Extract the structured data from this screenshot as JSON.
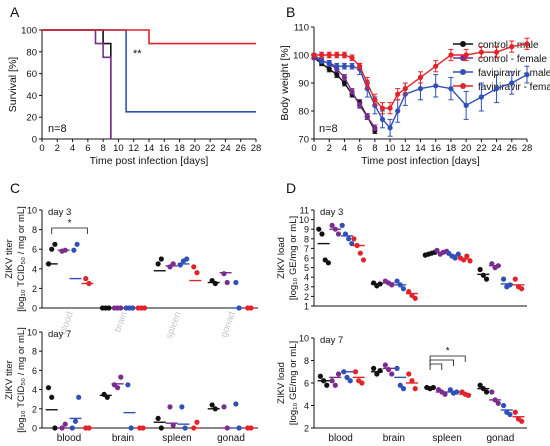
{
  "panels": [
    {
      "letter": "A",
      "n_label": "n=8",
      "significance": "**"
    },
    {
      "letter": "B",
      "n_label": "n=8"
    },
    {
      "letter": "C"
    },
    {
      "letter": "D"
    }
  ],
  "legend": [
    {
      "name": "control - male",
      "color": "#111111"
    },
    {
      "name": "control - female",
      "color": "#7b2d8e"
    },
    {
      "name": "favipiravir - male",
      "color": "#3050b8"
    },
    {
      "name": "favipiravir - female",
      "color": "#e0242a"
    }
  ],
  "chart_data": [
    {
      "id": "A",
      "type": "line",
      "step": true,
      "xlabel": "Time post infection [days]",
      "ylabel": "Survival [%]",
      "xlim": [
        0,
        28
      ],
      "ylim": [
        0,
        100
      ],
      "xticks": [
        0,
        2,
        4,
        6,
        8,
        10,
        12,
        14,
        16,
        18,
        20,
        22,
        24,
        26,
        28
      ],
      "yticks": [
        0,
        20,
        40,
        60,
        80,
        100
      ],
      "series": [
        {
          "name": "control - male",
          "color": "#111111",
          "x": [
            0,
            8,
            8,
            9,
            9
          ],
          "y": [
            100,
            100,
            87.5,
            87.5,
            0
          ]
        },
        {
          "name": "control - female",
          "color": "#7b2d8e",
          "x": [
            0,
            7,
            7,
            8,
            8,
            9,
            9
          ],
          "y": [
            100,
            100,
            87.5,
            87.5,
            75,
            75,
            0
          ]
        },
        {
          "name": "favipiravir - male",
          "color": "#3050b8",
          "x": [
            0,
            11,
            11,
            28
          ],
          "y": [
            100,
            100,
            25,
            25
          ]
        },
        {
          "name": "favipiravir - female",
          "color": "#e0242a",
          "x": [
            0,
            14,
            14,
            28
          ],
          "y": [
            100,
            100,
            87.5,
            87.5
          ]
        }
      ]
    },
    {
      "id": "B",
      "type": "line",
      "xlabel": "Time post infection [days]",
      "ylabel": "Body weight [%]",
      "xlim": [
        0,
        28
      ],
      "ylim": [
        70,
        110
      ],
      "xticks": [
        0,
        2,
        4,
        6,
        8,
        10,
        12,
        14,
        16,
        18,
        20,
        22,
        24,
        26,
        28
      ],
      "yticks": [
        70,
        80,
        90,
        100,
        110
      ],
      "series": [
        {
          "name": "control - male",
          "color": "#111111",
          "x": [
            0,
            1,
            2,
            3,
            4,
            5,
            6,
            7,
            8
          ],
          "y": [
            99,
            97,
            95,
            93,
            90,
            86,
            83,
            78,
            73
          ],
          "err": [
            0.5,
            0.8,
            1,
            1,
            1,
            1,
            1,
            1,
            1
          ]
        },
        {
          "name": "control - female",
          "color": "#7b2d8e",
          "x": [
            0,
            1,
            2,
            3,
            4,
            5,
            6,
            7,
            8
          ],
          "y": [
            99,
            98,
            97,
            95,
            92,
            87,
            82,
            78,
            74
          ],
          "err": [
            0.5,
            0.8,
            1,
            1,
            1,
            1,
            1,
            1,
            1
          ]
        },
        {
          "name": "favipiravir - male",
          "color": "#3050b8",
          "x": [
            0,
            1,
            2,
            3,
            4,
            5,
            6,
            7,
            8,
            9,
            10,
            11,
            12,
            14,
            16,
            18,
            20,
            22,
            24,
            26,
            28
          ],
          "y": [
            100,
            98,
            97,
            96,
            96,
            96,
            95,
            88,
            82,
            77,
            74,
            80,
            86,
            88,
            89,
            88,
            82,
            85,
            88,
            90,
            93
          ],
          "err": [
            0.5,
            1,
            1,
            1,
            1,
            1,
            2,
            3,
            3,
            3,
            3,
            4,
            4,
            4,
            4,
            4,
            5,
            5,
            5,
            4,
            3
          ]
        },
        {
          "name": "favipiravir - female",
          "color": "#e0242a",
          "x": [
            0,
            1,
            2,
            3,
            4,
            5,
            6,
            7,
            8,
            9,
            10,
            11,
            12,
            14,
            16,
            18,
            20,
            22,
            24,
            26,
            28
          ],
          "y": [
            100,
            100,
            100,
            100,
            100,
            99,
            96,
            90,
            84,
            81,
            81,
            86,
            88,
            92,
            96,
            100,
            100,
            101,
            101,
            103,
            104
          ],
          "err": [
            0.5,
            1,
            1,
            1,
            1,
            1,
            1,
            2,
            2,
            2,
            2,
            2,
            2,
            2,
            2,
            2,
            2,
            2,
            2,
            2,
            2
          ]
        }
      ]
    },
    {
      "id": "C3",
      "type": "scatter",
      "day_label": "day 3",
      "ylabel_line1": "ZIKV titer",
      "ylabel_line2": "[log₁₀ TCID₅₀ / mg or mL]",
      "ylim": [
        0,
        10
      ],
      "yticks": [
        0,
        2,
        4,
        6,
        8,
        10
      ],
      "categories": [
        "blood",
        "brain",
        "spleen",
        "gonad"
      ],
      "category_label_color": "#c8c8c8",
      "significance": [
        {
          "label": "*",
          "from": [
            0,
            0
          ],
          "to": [
            0,
            3
          ]
        }
      ],
      "groups": [
        [
          {
            "pts": [
              4.5,
              6,
              6.5
            ],
            "mean": 4.5
          },
          {
            "pts": [
              5.8,
              5.9
            ],
            "mean": 5.9
          },
          {
            "pts": [
              5.9,
              6.5
            ],
            "mean": 3
          },
          {
            "pts": [
              3,
              2.5
            ],
            "mean": 2.5
          }
        ],
        [
          {
            "pts": [
              0,
              0,
              0
            ],
            "mean": 0
          },
          {
            "pts": [
              0,
              0,
              0
            ],
            "mean": 0
          },
          {
            "pts": [
              0,
              0,
              0
            ],
            "mean": 0
          },
          {
            "pts": [
              0,
              0,
              0
            ],
            "mean": 0
          }
        ],
        [
          {
            "pts": [
              4.5,
              5
            ],
            "mean": 3.8
          },
          {
            "pts": [
              4.2,
              4.5
            ],
            "mean": 4.3
          },
          {
            "pts": [
              4.4,
              4.8,
              5
            ],
            "mean": 4.5
          },
          {
            "pts": [
              4.2,
              3.6
            ],
            "mean": 2.8
          }
        ],
        [
          {
            "pts": [
              2.8,
              2.5
            ],
            "mean": 2.6
          },
          {
            "pts": [
              3.5,
              2.6
            ],
            "mean": 3.6
          },
          {
            "pts": [
              2.6,
              0
            ],
            "mean": 0
          },
          {
            "pts": [
              0,
              0
            ],
            "mean": 0
          }
        ]
      ]
    },
    {
      "id": "C7",
      "type": "scatter",
      "day_label": "day 7",
      "ylabel_line1": "ZIKV titer",
      "ylabel_line2": "[log₁₀ TCID₅₀ / mg or mL]",
      "ylim": [
        0,
        10
      ],
      "yticks": [
        0,
        2,
        4,
        6,
        8,
        10
      ],
      "categories": [
        "blood",
        "brain",
        "spleen",
        "gonad"
      ],
      "groups": [
        [
          {
            "pts": [
              4.2,
              3.2,
              0
            ],
            "mean": 1.9
          },
          {
            "pts": [
              0,
              0.4
            ],
            "mean": 0
          },
          {
            "pts": [
              0,
              0.7,
              3.2
            ],
            "mean": 1
          },
          {
            "pts": [
              0,
              0
            ],
            "mean": 0
          }
        ],
        [
          {
            "pts": [
              3.5,
              3.2
            ],
            "mean": 3.4
          },
          {
            "pts": [
              4.5,
              4.2,
              5.3
            ],
            "mean": 4.6
          },
          {
            "pts": [
              4.5,
              0
            ],
            "mean": 1.6
          },
          {
            "pts": [
              0,
              0
            ],
            "mean": 0
          }
        ],
        [
          {
            "pts": [
              1,
              0
            ],
            "mean": 0.6
          },
          {
            "pts": [
              2.2,
              0.3
            ],
            "mean": 0.5
          },
          {
            "pts": [
              2.2,
              0
            ],
            "mean": 0.4
          },
          {
            "pts": [
              0,
              0.6
            ],
            "mean": 0
          }
        ],
        [
          {
            "pts": [
              2.4,
              2
            ],
            "mean": 2
          },
          {
            "pts": [
              2.2,
              0
            ],
            "mean": 0
          },
          {
            "pts": [
              2.5,
              0
            ],
            "mean": 0
          },
          {
            "pts": [
              0,
              0
            ],
            "mean": 0
          }
        ]
      ]
    },
    {
      "id": "D3",
      "type": "scatter",
      "day_label": "day 3",
      "ylabel_line1": "ZIKV load",
      "ylabel_line2": "[log₁₀ GE/mg or mL]",
      "ylim": [
        1,
        11
      ],
      "yticks": [
        1,
        2,
        3,
        4,
        5,
        6,
        7,
        8,
        9,
        10,
        11
      ],
      "categories": [
        "blood",
        "brain",
        "spleen",
        "gonad"
      ],
      "groups": [
        [
          {
            "pts": [
              9,
              8.5,
              5.8,
              5.5
            ],
            "mean": 7.5
          },
          {
            "pts": [
              9.4,
              9,
              8.5
            ],
            "mean": 9
          },
          {
            "pts": [
              9.4,
              8.5,
              8,
              7.5
            ],
            "mean": 8.3
          },
          {
            "pts": [
              8,
              7.3,
              6.5,
              5.8
            ],
            "mean": 7.3
          }
        ],
        [
          {
            "pts": [
              3.4,
              3.1,
              3.3
            ],
            "mean": 3.3
          },
          {
            "pts": [
              3.6,
              3.4,
              3.2
            ],
            "mean": 3.4
          },
          {
            "pts": [
              3.6,
              3.2,
              2.8
            ],
            "mean": 3.2
          },
          {
            "pts": [
              2.5,
              2.1,
              1.8
            ],
            "mean": 2.3
          }
        ],
        [
          {
            "pts": [
              6.3,
              6.4,
              6.5,
              6.6
            ],
            "mean": 6.5
          },
          {
            "pts": [
              6.8,
              6.4,
              6.6,
              6.7
            ],
            "mean": 6.6
          },
          {
            "pts": [
              6.5,
              6.2,
              6.0,
              6.4
            ],
            "mean": 6.3
          },
          {
            "pts": [
              6.0,
              5.8,
              6.2,
              5.7
            ],
            "mean": 5.9
          }
        ],
        [
          {
            "pts": [
              4.8,
              4.2,
              3.8
            ],
            "mean": 4.3
          },
          {
            "pts": [
              5.4,
              5.0,
              5.2
            ],
            "mean": 5.2
          },
          {
            "pts": [
              3.8,
              3.0,
              3.2
            ],
            "mean": 3.3
          },
          {
            "pts": [
              3.8,
              3.0,
              2.8
            ],
            "mean": 3.2
          }
        ]
      ]
    },
    {
      "id": "D7",
      "type": "scatter",
      "day_label": "day 7",
      "ylabel_line1": "ZIKV load",
      "ylabel_line2": "[log₁₀ GE/mg or mL]",
      "ylim": [
        2,
        10
      ],
      "yticks": [
        2,
        4,
        6,
        8,
        10
      ],
      "categories": [
        "blood",
        "brain",
        "spleen",
        "gonad"
      ],
      "significance": [
        {
          "label": "*",
          "from": [
            2,
            0
          ],
          "to": [
            2,
            3
          ]
        },
        {
          "label": "",
          "from": [
            2,
            0
          ],
          "to": [
            2,
            2
          ]
        },
        {
          "label": "",
          "from": [
            2,
            0
          ],
          "to": [
            2,
            1
          ]
        }
      ],
      "groups": [
        [
          {
            "pts": [
              6.6,
              6.2,
              5.8
            ],
            "mean": 6.2
          },
          {
            "pts": [
              6.2,
              5.8,
              6.8
            ],
            "mean": 6.5
          },
          {
            "pts": [
              7.0,
              6.5,
              6.2
            ],
            "mean": 7.0
          },
          {
            "pts": [
              7.0,
              6.2,
              6.0
            ],
            "mean": 6.5
          }
        ],
        [
          {
            "pts": [
              7.3,
              6.8,
              7.1
            ],
            "mean": 7.0
          },
          {
            "pts": [
              7.6,
              7.2,
              6.8
            ],
            "mean": 7.3
          },
          {
            "pts": [
              7.3,
              5.8,
              5.5
            ],
            "mean": 6.5
          },
          {
            "pts": [
              6.8,
              6.2,
              5.5
            ],
            "mean": 6.0
          }
        ],
        [
          {
            "pts": [
              5.6,
              5.5,
              5.6
            ],
            "mean": 5.6
          },
          {
            "pts": [
              5.4,
              5.2,
              5.0
            ],
            "mean": 5.2
          },
          {
            "pts": [
              5.4,
              5.1,
              5.2
            ],
            "mean": 5.2
          },
          {
            "pts": [
              5.2,
              5.0,
              4.9
            ],
            "mean": 5.0
          }
        ],
        [
          {
            "pts": [
              5.8,
              5.5,
              5.2
            ],
            "mean": 5.5
          },
          {
            "pts": [
              5.2,
              4.5,
              4.2
            ],
            "mean": 4.5
          },
          {
            "pts": [
              4.0,
              3.4,
              3.2
            ],
            "mean": 3.6
          },
          {
            "pts": [
              3.4,
              2.8,
              2.6
            ],
            "mean": 3.0
          }
        ]
      ]
    }
  ]
}
